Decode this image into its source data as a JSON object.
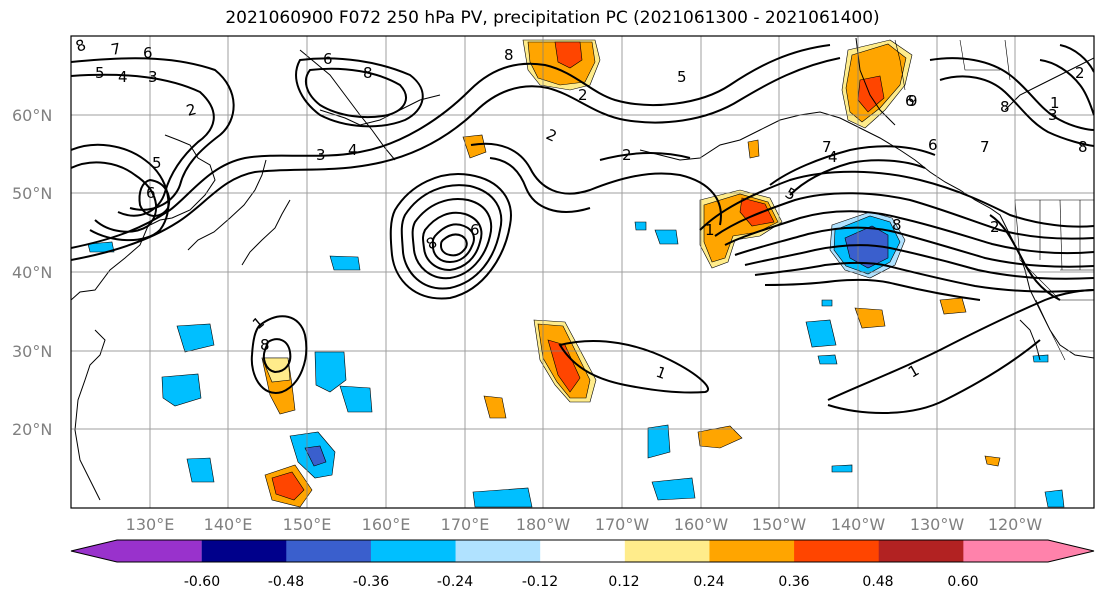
{
  "title": "2021060900 F072 250 hPa PV, precipitation PC (2021061300 - 2021061400)",
  "lat_labels": [
    "60°N",
    "50°N",
    "40°N",
    "30°N",
    "20°N"
  ],
  "lon_labels": [
    "130°E",
    "140°E",
    "150°E",
    "160°E",
    "170°E",
    "180°W",
    "170°W",
    "160°W",
    "150°W",
    "140°W",
    "130°W",
    "120°W"
  ],
  "colorbar": {
    "colors": [
      "#9932cc",
      "#00008b",
      "#3a5fcd",
      "#00bfff",
      "#b0e2ff",
      "#ffffff",
      "#ffec8b",
      "#ffa500",
      "#ff4500",
      "#b22222",
      "#ff82ab"
    ],
    "tick_labels": [
      "-0.60",
      "-0.48",
      "-0.36",
      "-0.24",
      "-0.12",
      "0.12",
      "0.24",
      "0.36",
      "0.48",
      "0.60"
    ]
  },
  "contour_labels": [
    "8",
    "7",
    "6",
    "5",
    "4",
    "3",
    "6",
    "8",
    "2",
    "5",
    "6",
    "3",
    "4",
    "8",
    "2",
    "2",
    "8",
    "6",
    "1",
    "8",
    "1",
    "1",
    "1",
    "6",
    "7",
    "5",
    "4",
    "8",
    "9",
    "8",
    "7",
    "6",
    "2",
    "1",
    "8",
    "3",
    "2",
    "2",
    "5"
  ]
}
